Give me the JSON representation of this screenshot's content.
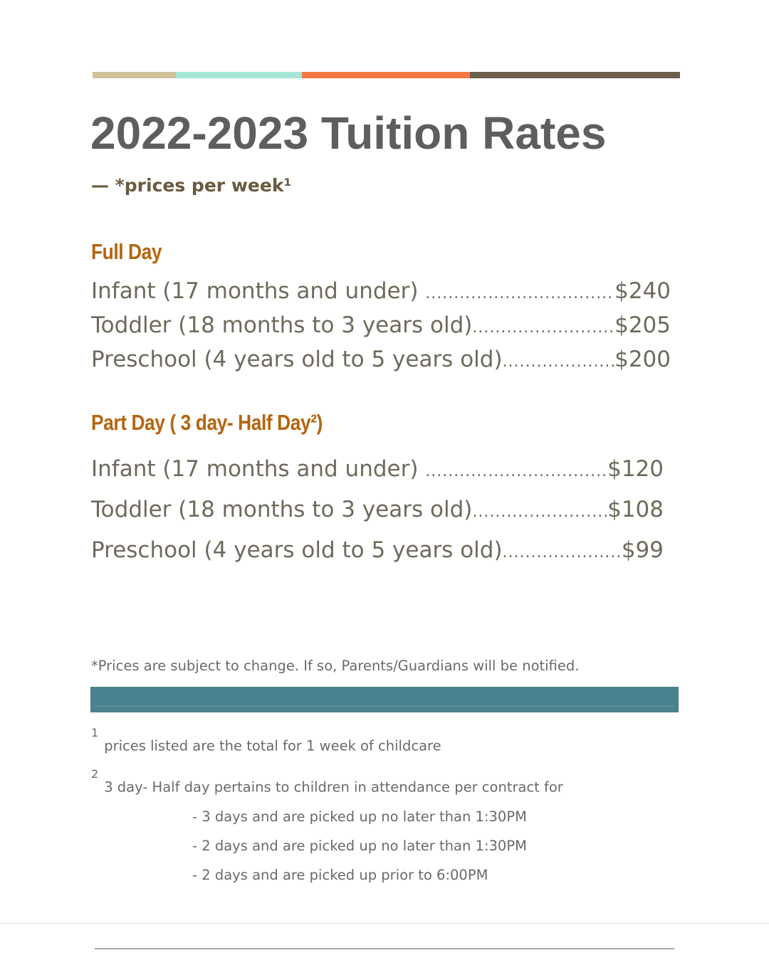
{
  "header": {
    "title": "2022-2023 Tuition Rates",
    "subtitle": "— *prices per week¹"
  },
  "sections": [
    {
      "heading": "Full Day",
      "items": [
        {
          "label": "Infant (17 months and under) ",
          "price": "$240"
        },
        {
          "label": "Toddler (18 months to 3 years old)",
          "price": "$205"
        },
        {
          "label": "Preschool (4 years old to 5 years old)",
          "price": "$200"
        }
      ]
    },
    {
      "heading": "Part Day ( 3 day- Half Day²)",
      "items": [
        {
          "label": "Infant (17 months and under) ",
          "price": "$120"
        },
        {
          "label": "Toddler (18 months to 3 years old)",
          "price": "$108"
        },
        {
          "label": "Preschool (4 years old to 5 years old)",
          "price": "$99"
        }
      ]
    }
  ],
  "note": "*Prices are subject to change. If so, Parents/Guardians will be notified.",
  "footnotes": [
    {
      "marker": "1",
      "text": "prices listed are the total for 1 week of childcare"
    },
    {
      "marker": "2",
      "text": "3 day- Half day pertains to children in attendance per contract for",
      "bullets": [
        "- 3 days and are picked up no later than 1:30PM",
        "- 2 days and are picked up no later than 1:30PM",
        "- 2 days and are picked up prior to 6:00PM"
      ]
    }
  ]
}
